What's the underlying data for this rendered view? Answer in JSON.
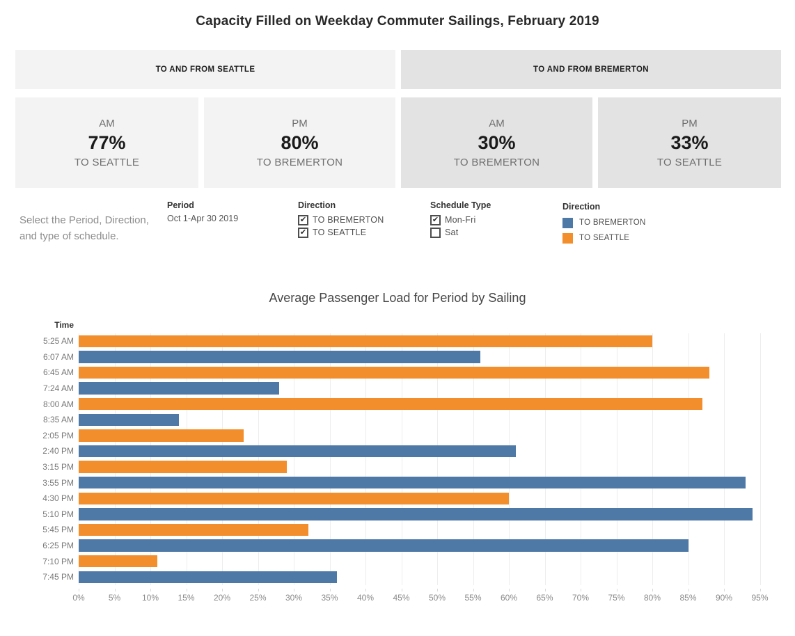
{
  "title": "Capacity Filled on Weekday Commuter Sailings, February 2019",
  "banners": {
    "seattle": "TO AND FROM SEATTLE",
    "bremerton": "TO AND FROM BREMERTON"
  },
  "kpis": [
    {
      "period": "AM",
      "value": "77%",
      "direction": "TO SEATTLE",
      "group": "seattle"
    },
    {
      "period": "PM",
      "value": "80%",
      "direction": "TO BREMERTON",
      "group": "seattle"
    },
    {
      "period": "AM",
      "value": "30%",
      "direction": "TO BREMERTON",
      "group": "bremerton"
    },
    {
      "period": "PM",
      "value": "33%",
      "direction": "TO SEATTLE",
      "group": "bremerton"
    }
  ],
  "note": "Select the Period, Direction, and type of schedule.",
  "filters": {
    "period": {
      "label": "Period",
      "value": "Oct 1-Apr 30 2019"
    },
    "direction": {
      "label": "Direction",
      "options": [
        {
          "label": "TO BREMERTON",
          "checked": true
        },
        {
          "label": "TO SEATTLE",
          "checked": true
        }
      ]
    },
    "schedule_type": {
      "label": "Schedule Type",
      "options": [
        {
          "label": "Mon-Fri",
          "checked": true
        },
        {
          "label": "Sat",
          "checked": false
        }
      ]
    }
  },
  "legend": {
    "label": "Direction",
    "items": [
      {
        "label": "TO BREMERTON",
        "color": "#4e79a7"
      },
      {
        "label": "TO SEATTLE",
        "color": "#f28e2b"
      }
    ]
  },
  "colors": {
    "to_bremerton": "#4e79a7",
    "to_seattle": "#f28e2b",
    "band_light": "#f3f3f3",
    "band_dark": "#e3e3e3"
  },
  "chart_data": {
    "type": "bar",
    "orientation": "horizontal",
    "title": "Average Passenger Load for Period by Sailing",
    "ylabel": "Time",
    "xlabel": "",
    "xlim": [
      0,
      96
    ],
    "grid": true,
    "x_ticks": [
      "0%",
      "5%",
      "10%",
      "15%",
      "20%",
      "25%",
      "30%",
      "35%",
      "40%",
      "45%",
      "50%",
      "55%",
      "60%",
      "65%",
      "70%",
      "75%",
      "80%",
      "85%",
      "90%",
      "95%"
    ],
    "categories": [
      "5:25 AM",
      "6:07 AM",
      "6:45 AM",
      "7:24 AM",
      "8:00 AM",
      "8:35 AM",
      "2:05 PM",
      "2:40 PM",
      "3:15 PM",
      "3:55 PM",
      "4:30 PM",
      "5:10 PM",
      "5:45 PM",
      "6:25 PM",
      "7:10 PM",
      "7:45 PM"
    ],
    "rows": [
      {
        "time": "5:25 AM",
        "direction": "TO SEATTLE",
        "value": 80
      },
      {
        "time": "6:07 AM",
        "direction": "TO BREMERTON",
        "value": 56
      },
      {
        "time": "6:45 AM",
        "direction": "TO SEATTLE",
        "value": 88
      },
      {
        "time": "7:24 AM",
        "direction": "TO BREMERTON",
        "value": 28
      },
      {
        "time": "8:00 AM",
        "direction": "TO SEATTLE",
        "value": 87
      },
      {
        "time": "8:35 AM",
        "direction": "TO BREMERTON",
        "value": 14
      },
      {
        "time": "2:05 PM",
        "direction": "TO SEATTLE",
        "value": 23
      },
      {
        "time": "2:40 PM",
        "direction": "TO BREMERTON",
        "value": 61
      },
      {
        "time": "3:15 PM",
        "direction": "TO SEATTLE",
        "value": 29
      },
      {
        "time": "3:55 PM",
        "direction": "TO BREMERTON",
        "value": 93
      },
      {
        "time": "4:30 PM",
        "direction": "TO SEATTLE",
        "value": 60
      },
      {
        "time": "5:10 PM",
        "direction": "TO BREMERTON",
        "value": 94
      },
      {
        "time": "5:45 PM",
        "direction": "TO SEATTLE",
        "value": 32
      },
      {
        "time": "6:25 PM",
        "direction": "TO BREMERTON",
        "value": 85
      },
      {
        "time": "7:10 PM",
        "direction": "TO SEATTLE",
        "value": 11
      },
      {
        "time": "7:45 PM",
        "direction": "TO BREMERTON",
        "value": 36
      }
    ]
  }
}
